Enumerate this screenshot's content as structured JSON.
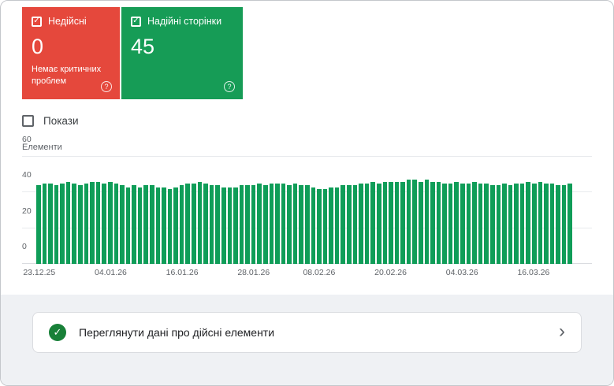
{
  "cards": {
    "invalid": {
      "label": "Недійсні",
      "value": "0",
      "subtitle": "Немає критичних проблем",
      "color": "#e5483c",
      "checked": true
    },
    "valid": {
      "label": "Надійні сторінки",
      "value": "45",
      "color": "#169c56",
      "checked": true
    }
  },
  "controls": {
    "impressions_label": "Покази",
    "impressions_checked": false
  },
  "icons": {
    "help": "?",
    "check": "✓",
    "chevron": "›"
  },
  "chart_data": {
    "type": "bar",
    "title": "",
    "ylabel": "Елементи",
    "xlabel": "",
    "ylim": [
      0,
      60
    ],
    "y_ticks": [
      0,
      20,
      40,
      60
    ],
    "grid": true,
    "legend": "none",
    "bar_color": "#0f9d58",
    "x_tick_labels": [
      "23.12.25",
      "04.01.26",
      "16.01.26",
      "28.01.26",
      "08.02.26",
      "20.02.26",
      "04.03.26",
      "16.03.26"
    ],
    "x_tick_positions": [
      0,
      12,
      24,
      36,
      47,
      59,
      71,
      83
    ],
    "values": [
      44,
      45,
      45,
      44,
      45,
      46,
      45,
      44,
      45,
      46,
      46,
      45,
      46,
      45,
      44,
      43,
      44,
      43,
      44,
      44,
      43,
      43,
      42,
      43,
      44,
      45,
      45,
      46,
      45,
      44,
      44,
      43,
      43,
      43,
      44,
      44,
      44,
      45,
      44,
      45,
      45,
      45,
      44,
      45,
      44,
      44,
      43,
      42,
      42,
      43,
      43,
      44,
      44,
      44,
      45,
      45,
      46,
      45,
      46,
      46,
      46,
      46,
      47,
      47,
      46,
      47,
      46,
      46,
      45,
      45,
      46,
      45,
      45,
      46,
      45,
      45,
      44,
      44,
      45,
      44,
      45,
      45,
      46,
      45,
      46,
      45,
      45,
      44,
      44,
      45
    ]
  },
  "footer": {
    "link_label": "Переглянути дані про дійсні елементи",
    "check_color": "#188038"
  }
}
